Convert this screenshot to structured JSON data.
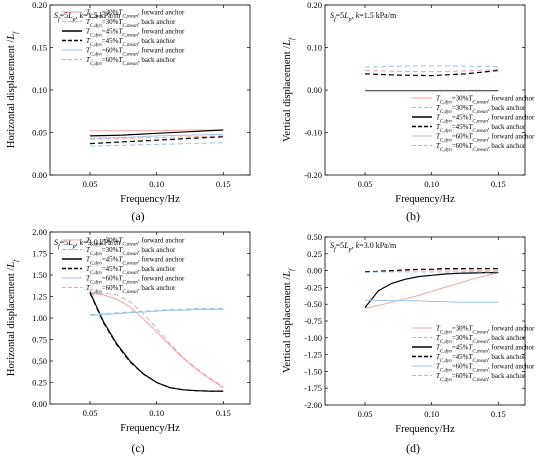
{
  "colors": {
    "red": "#f4a3a3",
    "black": "#000000",
    "blue": "#9cc4e4"
  },
  "legend_entries": [
    {
      "text": "T_C,dyn=30%T_C,mean, forward anchor",
      "color": "#f4a3a3",
      "dash": false
    },
    {
      "text": "T_C,dyn=30%T_C,mean, back anchor",
      "color": "#f4a3a3",
      "dash": true
    },
    {
      "text": "T_C,dyn=45%T_C,mean, forward anchor",
      "color": "#000000",
      "dash": false
    },
    {
      "text": "T_C,dyn=45%T_C,mean, back anchor",
      "color": "#000000",
      "dash": true
    },
    {
      "text": "T_C,dyn=60%T_C,mean, forward anchor",
      "color": "#9cc4e4",
      "dash": false
    },
    {
      "text": "T_C,dyn=60%T_C,mean, back anchor",
      "color": "#9cc4e4",
      "dash": true
    }
  ],
  "chart_data": [
    {
      "panel": "(a)",
      "type": "line",
      "annotation": "S_f=5L_p, k=1.5 kPa/m",
      "xlabel": "Frequency/Hz",
      "ylabel": "Horizontal displacement /L_f",
      "xlim": [
        0.02,
        0.17
      ],
      "ylim": [
        0.0,
        0.2
      ],
      "xticks": [
        0.05,
        0.1,
        0.15
      ],
      "xtick_labels": [
        "0.05",
        "0.10",
        "0.15"
      ],
      "yticks": [
        0.0,
        0.05,
        0.1,
        0.15,
        0.2
      ],
      "ytick_labels": [
        "0.00",
        "0.05",
        "0.10",
        "0.15",
        "0.20"
      ],
      "legend_position": "top-left",
      "x": [
        0.05,
        0.075,
        0.1,
        0.125,
        0.15
      ],
      "series": [
        {
          "name": "T_C,dyn=30%T_C,mean, forward anchor",
          "values": [
            0.052,
            0.052,
            0.052,
            0.053,
            0.053
          ]
        },
        {
          "name": "T_C,dyn=30%T_C,mean, back anchor",
          "values": [
            0.042,
            0.043,
            0.044,
            0.045,
            0.046
          ]
        },
        {
          "name": "T_C,dyn=45%T_C,mean, forward anchor",
          "values": [
            0.046,
            0.047,
            0.049,
            0.051,
            0.053
          ]
        },
        {
          "name": "T_C,dyn=45%T_C,mean, back anchor",
          "values": [
            0.037,
            0.039,
            0.041,
            0.043,
            0.045
          ]
        },
        {
          "name": "T_C,dyn=60%T_C,mean, forward anchor",
          "values": [
            0.043,
            0.044,
            0.046,
            0.047,
            0.048
          ]
        },
        {
          "name": "T_C,dyn=60%T_C,mean, back anchor",
          "values": [
            0.034,
            0.035,
            0.036,
            0.037,
            0.038
          ]
        }
      ]
    },
    {
      "panel": "(b)",
      "type": "line",
      "annotation": "S_f=5L_p, k=1.5 kPa/m",
      "xlabel": "Frequency/Hz",
      "ylabel": "Vertical displacement /L_f",
      "xlim": [
        0.02,
        0.17
      ],
      "ylim": [
        -0.2,
        0.2
      ],
      "xticks": [
        0.05,
        0.1,
        0.15
      ],
      "xtick_labels": [
        "0.05",
        "0.10",
        "0.15"
      ],
      "yticks": [
        -0.2,
        -0.1,
        0.0,
        0.1,
        0.2
      ],
      "ytick_labels": [
        "-0.20",
        "-0.10",
        "0.00",
        "0.10",
        "0.20"
      ],
      "legend_position": "bottom-right",
      "x": [
        0.05,
        0.075,
        0.1,
        0.125,
        0.15
      ],
      "series": [
        {
          "name": "T_C,dyn=30%T_C,mean, forward anchor",
          "values": [
            -0.001,
            -0.001,
            -0.001,
            -0.001,
            -0.001
          ]
        },
        {
          "name": "T_C,dyn=30%T_C,mean, back anchor",
          "values": [
            0.046,
            0.044,
            0.043,
            0.045,
            0.048
          ]
        },
        {
          "name": "T_C,dyn=45%T_C,mean, forward anchor",
          "values": [
            -0.002,
            -0.002,
            -0.002,
            -0.002,
            -0.002
          ]
        },
        {
          "name": "T_C,dyn=45%T_C,mean, back anchor",
          "values": [
            0.038,
            0.035,
            0.034,
            0.038,
            0.046
          ]
        },
        {
          "name": "T_C,dyn=60%T_C,mean, forward anchor",
          "values": [
            -0.003,
            -0.003,
            -0.003,
            -0.003,
            -0.003
          ]
        },
        {
          "name": "T_C,dyn=60%T_C,mean, back anchor",
          "values": [
            0.054,
            0.056,
            0.057,
            0.056,
            0.055
          ]
        }
      ]
    },
    {
      "panel": "(c)",
      "type": "line",
      "annotation": "S_f=5L_p, k=3.0 kPa/m",
      "xlabel": "Frequency/Hz",
      "ylabel": "Horizontal displacement /L_f",
      "xlim": [
        0.02,
        0.17
      ],
      "ylim": [
        0.0,
        2.0
      ],
      "xticks": [
        0.05,
        0.1,
        0.15
      ],
      "xtick_labels": [
        "0.05",
        "0.10",
        "0.15"
      ],
      "yticks": [
        0.0,
        0.25,
        0.5,
        0.75,
        1.0,
        1.25,
        1.5,
        1.75,
        2.0
      ],
      "ytick_labels": [
        "0.00",
        "0.25",
        "0.50",
        "0.75",
        "1.00",
        "1.25",
        "1.50",
        "1.75",
        "2.00"
      ],
      "legend_position": "top-left",
      "x": [
        0.05,
        0.06,
        0.07,
        0.08,
        0.09,
        0.1,
        0.11,
        0.12,
        0.13,
        0.14,
        0.15
      ],
      "series": [
        {
          "name": "T_C,dyn=30%T_C,mean, forward anchor",
          "values": [
            1.29,
            1.27,
            1.22,
            1.13,
            0.99,
            0.84,
            0.68,
            0.53,
            0.4,
            0.29,
            0.19
          ]
        },
        {
          "name": "T_C,dyn=30%T_C,mean, back anchor",
          "values": [
            1.27,
            1.29,
            1.27,
            1.19,
            1.05,
            0.88,
            0.7,
            0.54,
            0.41,
            0.3,
            0.2
          ]
        },
        {
          "name": "T_C,dyn=45%T_C,mean, forward anchor",
          "values": [
            1.3,
            0.96,
            0.7,
            0.5,
            0.35,
            0.25,
            0.19,
            0.165,
            0.155,
            0.15,
            0.15
          ]
        },
        {
          "name": "T_C,dyn=45%T_C,mean, back anchor",
          "values": [
            1.29,
            0.95,
            0.69,
            0.49,
            0.35,
            0.25,
            0.19,
            0.165,
            0.155,
            0.15,
            0.15
          ]
        },
        {
          "name": "T_C,dyn=60%T_C,mean, forward anchor",
          "values": [
            1.03,
            1.04,
            1.05,
            1.06,
            1.07,
            1.08,
            1.09,
            1.09,
            1.1,
            1.1,
            1.1
          ]
        },
        {
          "name": "T_C,dyn=60%T_C,mean, back anchor",
          "values": [
            1.04,
            1.05,
            1.06,
            1.07,
            1.08,
            1.09,
            1.1,
            1.1,
            1.11,
            1.11,
            1.11
          ]
        }
      ]
    },
    {
      "panel": "(d)",
      "type": "line",
      "annotation": "S_f=5L_p, k=3.0 kPa/m",
      "xlabel": "Frequency/Hz",
      "ylabel": "Vertical displacement /L_f",
      "xlim": [
        0.02,
        0.17
      ],
      "ylim": [
        -2.0,
        0.5
      ],
      "xticks": [
        0.05,
        0.1,
        0.15
      ],
      "xtick_labels": [
        "0.05",
        "0.10",
        "0.15"
      ],
      "yticks": [
        -2.0,
        -1.75,
        -1.5,
        -1.25,
        -1.0,
        -0.75,
        -0.5,
        -0.25,
        0.0,
        0.25,
        0.5
      ],
      "ytick_labels": [
        "-2.00",
        "-1.75",
        "-1.50",
        "-1.25",
        "-1.00",
        "-0.75",
        "-0.50",
        "-0.25",
        "0.00",
        "0.25",
        "0.50"
      ],
      "legend_position": "bottom-right",
      "x": [
        0.05,
        0.06,
        0.07,
        0.08,
        0.09,
        0.1,
        0.11,
        0.12,
        0.13,
        0.14,
        0.15
      ],
      "series": [
        {
          "name": "T_C,dyn=30%T_C,mean, forward anchor",
          "values": [
            -0.56,
            -0.52,
            -0.47,
            -0.42,
            -0.37,
            -0.31,
            -0.25,
            -0.19,
            -0.13,
            -0.08,
            -0.03
          ]
        },
        {
          "name": "T_C,dyn=30%T_C,mean, back anchor",
          "values": [
            -0.03,
            -0.02,
            -0.01,
            0.0,
            0.01,
            0.01,
            0.01,
            0.01,
            0.0,
            0.0,
            0.0
          ]
        },
        {
          "name": "T_C,dyn=45%T_C,mean, forward anchor",
          "values": [
            -0.55,
            -0.3,
            -0.19,
            -0.13,
            -0.09,
            -0.07,
            -0.05,
            -0.04,
            -0.035,
            -0.03,
            -0.03
          ]
        },
        {
          "name": "T_C,dyn=45%T_C,mean, back anchor",
          "values": [
            -0.02,
            -0.01,
            0.0,
            0.01,
            0.02,
            0.02,
            0.03,
            0.03,
            0.03,
            0.03,
            0.03
          ]
        },
        {
          "name": "T_C,dyn=60%T_C,mean, forward anchor",
          "values": [
            -0.44,
            -0.44,
            -0.45,
            -0.45,
            -0.45,
            -0.46,
            -0.46,
            -0.47,
            -0.47,
            -0.47,
            -0.47
          ]
        },
        {
          "name": "T_C,dyn=60%T_C,mean, back anchor",
          "values": [
            -0.03,
            -0.02,
            -0.02,
            -0.02,
            -0.02,
            -0.02,
            -0.02,
            -0.02,
            -0.02,
            -0.02,
            -0.02
          ]
        }
      ]
    }
  ]
}
